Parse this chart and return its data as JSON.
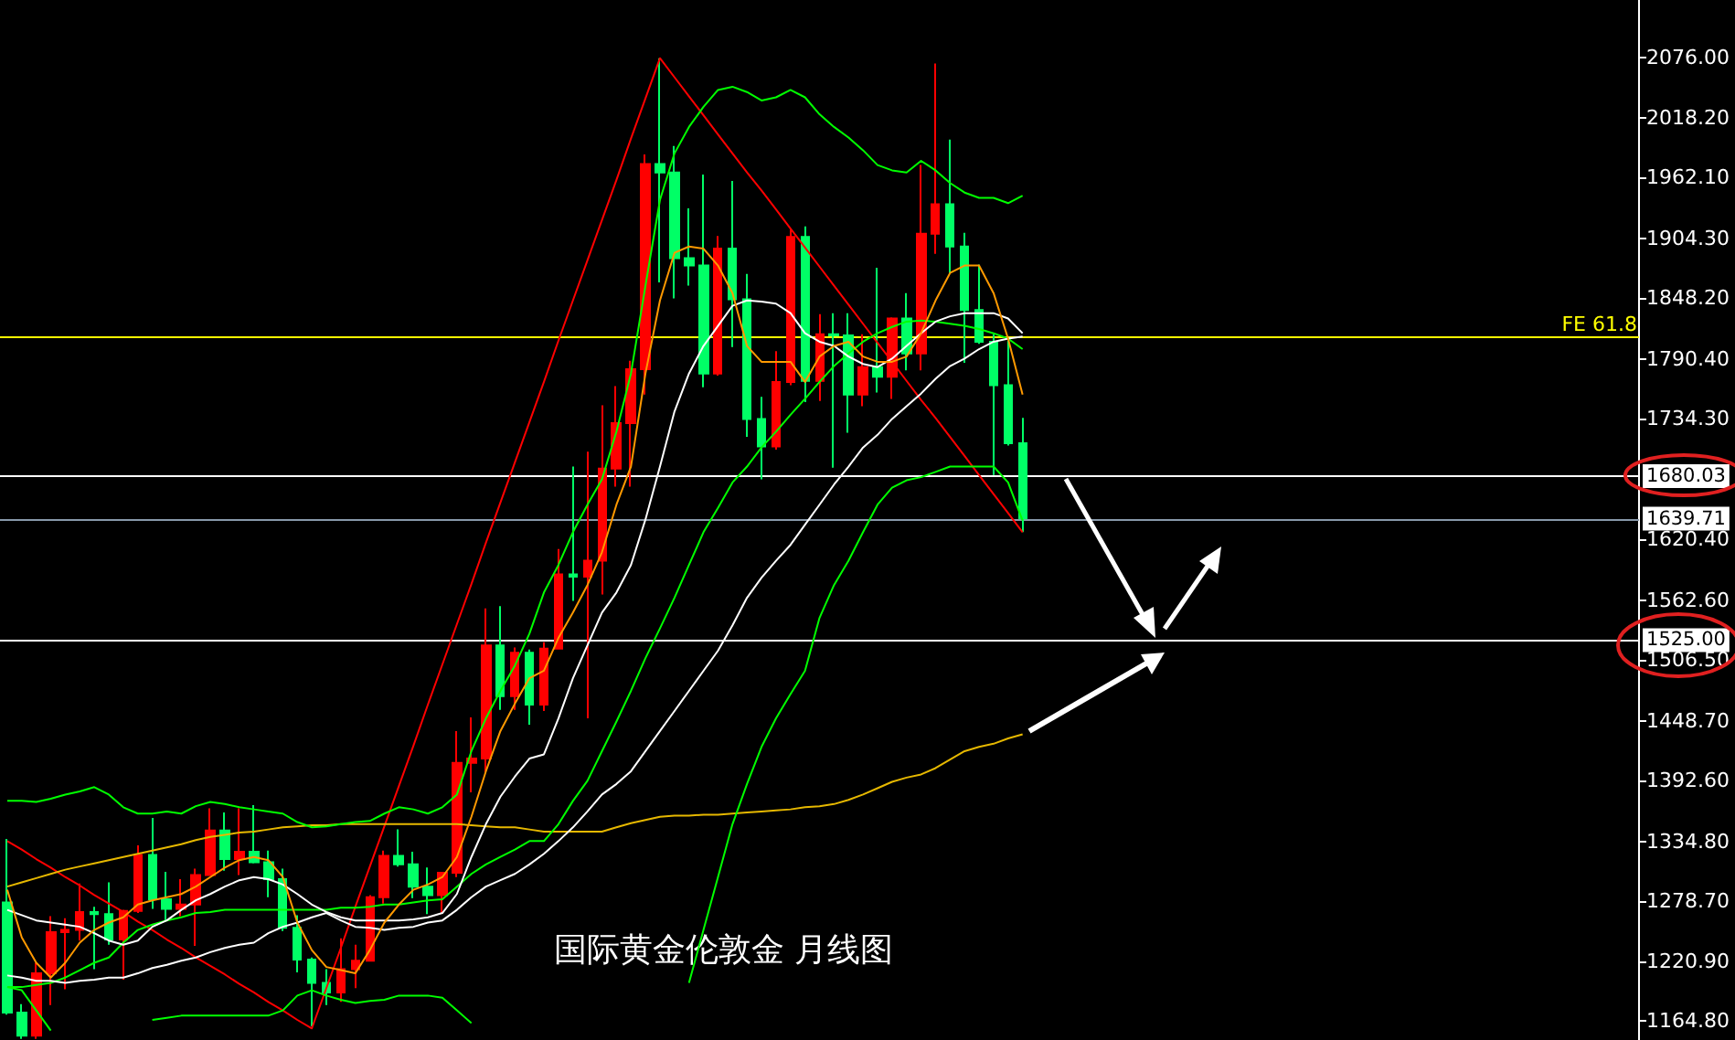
{
  "chart_data": {
    "type": "candlestick",
    "title": "国际黄金伦敦金 月线图",
    "categories": [
      null,
      null,
      null,
      null,
      null,
      null,
      null,
      null,
      null,
      null,
      null,
      null,
      null,
      null,
      null,
      null,
      null,
      null,
      null,
      null,
      null,
      null,
      null,
      null,
      null,
      null,
      null,
      null,
      null,
      null,
      null,
      null,
      null,
      null,
      null,
      null,
      null,
      null,
      null,
      null,
      null,
      null,
      null,
      null,
      null,
      null,
      null,
      null,
      null,
      null,
      null,
      null,
      null,
      null,
      null,
      null,
      null,
      null,
      null,
      null,
      null,
      null,
      null,
      null,
      null,
      null,
      null,
      null,
      null,
      null,
      null
    ],
    "ohlc": [
      [
        1277,
        1337,
        1171,
        1173
      ],
      [
        1173,
        1181,
        1148,
        1151
      ],
      [
        1151,
        1220,
        1148,
        1210
      ],
      [
        1210,
        1264,
        1180,
        1249
      ],
      [
        1249,
        1262,
        1195,
        1251
      ],
      [
        1251,
        1295,
        1241,
        1268
      ],
      [
        1268,
        1273,
        1214,
        1266
      ],
      [
        1266,
        1296,
        1237,
        1242
      ],
      [
        1242,
        1270,
        1204,
        1269
      ],
      [
        1269,
        1331,
        1267,
        1322
      ],
      [
        1322,
        1357,
        1271,
        1280
      ],
      [
        1280,
        1306,
        1260,
        1271
      ],
      [
        1271,
        1299,
        1264,
        1275
      ],
      [
        1275,
        1309,
        1236,
        1303
      ],
      [
        1303,
        1366,
        1302,
        1345
      ],
      [
        1345,
        1362,
        1307,
        1318
      ],
      [
        1318,
        1366,
        1303,
        1325
      ],
      [
        1325,
        1369,
        1314,
        1315
      ],
      [
        1315,
        1326,
        1282,
        1299
      ],
      [
        1299,
        1309,
        1250,
        1253
      ],
      [
        1253,
        1265,
        1211,
        1223
      ],
      [
        1223,
        1225,
        1160,
        1201
      ],
      [
        1201,
        1214,
        1180,
        1192
      ],
      [
        1192,
        1243,
        1183,
        1214
      ],
      [
        1214,
        1237,
        1196,
        1222
      ],
      [
        1222,
        1284,
        1221,
        1282
      ],
      [
        1282,
        1326,
        1276,
        1321
      ],
      [
        1321,
        1346,
        1311,
        1313
      ],
      [
        1313,
        1325,
        1281,
        1292
      ],
      [
        1292,
        1310,
        1266,
        1284
      ],
      [
        1284,
        1306,
        1267,
        1305
      ],
      [
        1305,
        1439,
        1301,
        1409
      ],
      [
        1409,
        1452,
        1381,
        1413
      ],
      [
        1413,
        1555,
        1400,
        1520
      ],
      [
        1520,
        1557,
        1459,
        1472
      ],
      [
        1472,
        1518,
        1459,
        1513
      ],
      [
        1513,
        1516,
        1445,
        1464
      ],
      [
        1464,
        1523,
        1458,
        1517
      ],
      [
        1517,
        1611,
        1517,
        1587
      ],
      [
        1587,
        1689,
        1562,
        1585
      ],
      [
        1585,
        1703,
        1451,
        1600
      ],
      [
        1600,
        1747,
        1568,
        1687
      ],
      [
        1687,
        1765,
        1670,
        1730
      ],
      [
        1730,
        1789,
        1670,
        1781
      ],
      [
        1781,
        1984,
        1757,
        1975
      ],
      [
        1975,
        2075,
        1863,
        1967
      ],
      [
        1967,
        1992,
        1848,
        1886
      ],
      [
        1886,
        1933,
        1860,
        1879
      ],
      [
        1879,
        1965,
        1764,
        1777
      ],
      [
        1777,
        1907,
        1775,
        1895
      ],
      [
        1895,
        1959,
        1802,
        1847
      ],
      [
        1847,
        1871,
        1717,
        1734
      ],
      [
        1734,
        1755,
        1677,
        1708
      ],
      [
        1708,
        1798,
        1705,
        1769
      ],
      [
        1769,
        1913,
        1766,
        1906
      ],
      [
        1906,
        1916,
        1750,
        1770
      ],
      [
        1770,
        1833,
        1751,
        1814
      ],
      [
        1814,
        1834,
        1688,
        1813
      ],
      [
        1813,
        1834,
        1721,
        1757
      ],
      [
        1757,
        1814,
        1746,
        1783
      ],
      [
        1783,
        1877,
        1759,
        1774
      ],
      [
        1774,
        1830,
        1753,
        1829
      ],
      [
        1829,
        1853,
        1780,
        1796
      ],
      [
        1796,
        1974,
        1780,
        1909
      ],
      [
        1909,
        2070,
        1890,
        1937
      ],
      [
        1937,
        1998,
        1872,
        1897
      ],
      [
        1897,
        1910,
        1787,
        1837
      ],
      [
        1837,
        1880,
        1805,
        1807
      ],
      [
        1807,
        1814,
        1681,
        1766
      ],
      [
        1766,
        1808,
        1709,
        1711
      ],
      [
        1711,
        1735,
        1627,
        1640
      ]
    ],
    "colors": [
      "#00ff66",
      "#00ff66",
      "#ff0000",
      "#ff0000",
      "#ff0000",
      "#ff0000",
      "#00ff66",
      "#00ff66",
      "#ff0000",
      "#ff0000",
      "#00ff66",
      "#00ff66",
      "#ff0000",
      "#ff0000",
      "#ff0000",
      "#00ff66",
      "#ff0000",
      "#00ff66",
      "#00ff66",
      "#00ff66",
      "#00ff66",
      "#00ff66",
      "#00ff66",
      "#ff0000",
      "#ff0000",
      "#ff0000",
      "#ff0000",
      "#00ff66",
      "#00ff66",
      "#00ff66",
      "#ff0000",
      "#ff0000",
      "#ff0000",
      "#ff0000",
      "#00ff66",
      "#ff0000",
      "#00ff66",
      "#ff0000",
      "#ff0000",
      "#00ff66",
      "#ff0000",
      "#ff0000",
      "#ff0000",
      "#ff0000",
      "#ff0000",
      "#00ff66",
      "#00ff66",
      "#00ff66",
      "#00ff66",
      "#ff0000",
      "#00ff66",
      "#00ff66",
      "#00ff66",
      "#ff0000",
      "#ff0000",
      "#00ff66",
      "#ff0000",
      "#00ff66",
      "#00ff66",
      "#ff0000",
      "#00ff66",
      "#ff0000",
      "#00ff66",
      "#ff0000",
      "#ff0000",
      "#00ff66",
      "#00ff66",
      "#00ff66",
      "#00ff66",
      "#00ff66",
      "#00ff66"
    ],
    "series": [
      {
        "type": "line",
        "color": "#ff0000",
        "values": [
          1335,
          1327,
          1318,
          1310,
          1301,
          1293,
          1284,
          1276,
          1268,
          1259,
          1251,
          1242,
          1234,
          1225,
          1217,
          1209,
          1200,
          1192,
          1183,
          1175,
          1166,
          1158,
          1196,
          1234,
          1273,
          1311,
          1349,
          1387,
          1425,
          1464,
          1502,
          1540,
          1578,
          1617,
          1655,
          1693,
          1731,
          1769,
          1808,
          1846,
          1884,
          1922,
          1960,
          1999,
          2037,
          2075,
          2057,
          2039,
          2021,
          2003,
          1985,
          1967,
          1950,
          1932,
          1914,
          1896,
          1878,
          1860,
          1842,
          1824,
          1806,
          1788,
          1770,
          1752,
          1735,
          1717,
          1699,
          1681,
          1663,
          1645,
          1627
        ]
      },
      {
        "type": "line",
        "color": "#e6b800",
        "values": [
          1292,
          1296,
          1300,
          1304,
          1308,
          1311,
          1314,
          1317,
          1320,
          1323,
          1326,
          1329,
          1332,
          1336,
          1339,
          1341,
          1343,
          1344,
          1346,
          1348,
          1349,
          1350,
          1350,
          1351,
          1351,
          1351,
          1351,
          1351,
          1351,
          1351,
          1351,
          1351,
          1350,
          1349,
          1348,
          1348,
          1346,
          1344,
          1344,
          1344,
          1344,
          1344,
          1348,
          1352,
          1355,
          1358,
          1359,
          1359,
          1360,
          1360,
          1361,
          1362,
          1363,
          1364,
          1365,
          1367,
          1368,
          1370,
          1374,
          1379,
          1385,
          1391,
          1395,
          1398,
          1404,
          1412,
          1420,
          1424,
          1427,
          1432,
          1436
        ]
      },
      {
        "type": "line",
        "color": "#00ff00",
        "values": [
          1373,
          1373,
          1372,
          1375,
          1379,
          1382,
          1386,
          1379,
          1367,
          1361,
          1361,
          1363,
          1361,
          1368,
          1372,
          1370,
          1367,
          1365,
          1363,
          1361,
          1353,
          1348,
          1349,
          1351,
          1353,
          1354,
          1361,
          1367,
          1365,
          1361,
          1367,
          1379,
          1420,
          1451,
          1477,
          1501,
          1531,
          1570,
          1596,
          1627,
          1653,
          1677,
          1722,
          1777,
          1860,
          1941,
          1985,
          2010,
          2029,
          2045,
          2048,
          2043,
          2035,
          2038,
          2045,
          2038,
          2022,
          2010,
          2000,
          1988,
          1974,
          1969,
          1967,
          1978,
          1969,
          1957,
          1948,
          1943,
          1943,
          1938,
          1945
        ]
      },
      {
        "type": "line",
        "color": "#00ff00",
        "values": [
          1197,
          1197,
          1199,
          1201,
          1206,
          1213,
          1220,
          1225,
          1239,
          1251,
          1256,
          1260,
          1263,
          1267,
          1268,
          1270,
          1270,
          1270,
          1270,
          1270,
          1270,
          1270,
          1270,
          1272,
          1272,
          1273,
          1275,
          1275,
          1277,
          1279,
          1280,
          1292,
          1304,
          1313,
          1320,
          1327,
          1335,
          1335,
          1351,
          1373,
          1392,
          1420,
          1448,
          1477,
          1508,
          1536,
          1565,
          1596,
          1627,
          1650,
          1674,
          1689,
          1707,
          1722,
          1738,
          1753,
          1769,
          1784,
          1796,
          1807,
          1815,
          1821,
          1826,
          1827,
          1826,
          1824,
          1822,
          1819,
          1815,
          1810,
          1800
        ]
      },
      {
        "type": "line",
        "color": "#00ff00",
        "values": [
          1197,
          1194,
          1175,
          1156,
          null,
          null,
          null,
          null,
          null,
          null,
          1166,
          1168,
          1170,
          1170,
          1170,
          1170,
          1170,
          1170,
          1170,
          1175,
          1189,
          1194,
          1189,
          1185,
          1182,
          1184,
          1185,
          1189,
          1189,
          1189,
          1187,
          1175,
          1163,
          null,
          null,
          null,
          null,
          null,
          null,
          null,
          null,
          null,
          null,
          null,
          null,
          null,
          null,
          1201,
          1251,
          1301,
          1351,
          1389,
          1424,
          1451,
          1474,
          1496,
          1546,
          1577,
          1600,
          1627,
          1653,
          1669,
          1676,
          1679,
          1684,
          1689,
          1689,
          1689,
          1689,
          1674,
          1638
        ]
      },
      {
        "type": "line",
        "color": "#ffffff",
        "values": [
          1208,
          1206,
          1203,
          1203,
          1201,
          1203,
          1204,
          1206,
          1206,
          1210,
          1215,
          1218,
          1222,
          1225,
          1230,
          1234,
          1237,
          1239,
          1248,
          1254,
          1258,
          1263,
          1267,
          1260,
          1254,
          1253,
          1251,
          1253,
          1254,
          1258,
          1260,
          1270,
          1282,
          1292,
          1298,
          1304,
          1313,
          1323,
          1335,
          1348,
          1363,
          1379,
          1389,
          1401,
          1420,
          1439,
          1458,
          1477,
          1496,
          1515,
          1539,
          1565,
          1584,
          1600,
          1615,
          1634,
          1653,
          1672,
          1689,
          1707,
          1719,
          1734,
          1746,
          1758,
          1772,
          1784,
          1791,
          1800,
          1807,
          1810,
          1812
        ]
      },
      {
        "type": "line",
        "color": "#ffffff",
        "values": [
          1270,
          1265,
          1260,
          1258,
          1256,
          1254,
          1248,
          1241,
          1237,
          1241,
          1254,
          1260,
          1270,
          1279,
          1285,
          1292,
          1298,
          1301,
          1299,
          1294,
          1285,
          1275,
          1268,
          1263,
          1260,
          1260,
          1260,
          1260,
          1261,
          1263,
          1267,
          1285,
          1320,
          1351,
          1377,
          1396,
          1413,
          1417,
          1451,
          1489,
          1520,
          1551,
          1570,
          1596,
          1639,
          1689,
          1741,
          1777,
          1803,
          1822,
          1841,
          1846,
          1845,
          1843,
          1834,
          1815,
          1807,
          1803,
          1793,
          1786,
          1783,
          1791,
          1803,
          1815,
          1826,
          1831,
          1834,
          1834,
          1834,
          1829,
          1815
        ]
      },
      {
        "type": "line",
        "color": "#ff9900",
        "values": [
          1289,
          1244,
          1220,
          1206,
          1220,
          1239,
          1251,
          1258,
          1263,
          1275,
          1279,
          1282,
          1285,
          1292,
          1301,
          1310,
          1317,
          1320,
          1317,
          1301,
          1258,
          1232,
          1216,
          1213,
          1210,
          1232,
          1258,
          1275,
          1289,
          1294,
          1301,
          1320,
          1358,
          1401,
          1439,
          1465,
          1489,
          1496,
          1527,
          1551,
          1577,
          1608,
          1653,
          1689,
          1777,
          1846,
          1891,
          1897,
          1895,
          1879,
          1853,
          1803,
          1788,
          1788,
          1788,
          1769,
          1793,
          1803,
          1807,
          1793,
          1788,
          1788,
          1793,
          1815,
          1846,
          1872,
          1879,
          1879,
          1853,
          1810,
          1757
        ]
      }
    ],
    "ylim": [
      1147,
      2130
    ],
    "yticks": [
      {
        "value": 2076,
        "label": "2076.00"
      },
      {
        "value": 2018.2,
        "label": "2018.20"
      },
      {
        "value": 1962.1,
        "label": "1962.10"
      },
      {
        "value": 1904.3,
        "label": "1904.30"
      },
      {
        "value": 1848.2,
        "label": "1848.20"
      },
      {
        "value": 1790.4,
        "label": "1790.40"
      },
      {
        "value": 1734.3,
        "label": "1734.30"
      },
      {
        "value": 1620.4,
        "label": "1620.40"
      },
      {
        "value": 1562.6,
        "label": "1562.60"
      },
      {
        "value": 1506.5,
        "label": "1506.50"
      },
      {
        "value": 1448.7,
        "label": "1448.70"
      },
      {
        "value": 1392.6,
        "label": "1392.60"
      },
      {
        "value": 1334.8,
        "label": "1334.80"
      },
      {
        "value": 1278.7,
        "label": "1278.70"
      },
      {
        "value": 1220.9,
        "label": "1220.90"
      },
      {
        "value": 1164.8,
        "label": "1164.80"
      }
    ],
    "ref_lines": [
      {
        "axis": "y",
        "value": 1812,
        "label": "FE 61.8",
        "color": "#ffff00"
      },
      {
        "axis": "y",
        "value": 1680.03,
        "label": "1680.03",
        "color": "#ffffff"
      },
      {
        "axis": "y",
        "value": 1639.71,
        "label": "1639.71",
        "color": "#8899aa"
      },
      {
        "axis": "y",
        "value": 1525,
        "label": "1525.00",
        "color": "#ffffff"
      }
    ],
    "tick_labels": "y",
    "grid": false,
    "marker": "none"
  }
}
